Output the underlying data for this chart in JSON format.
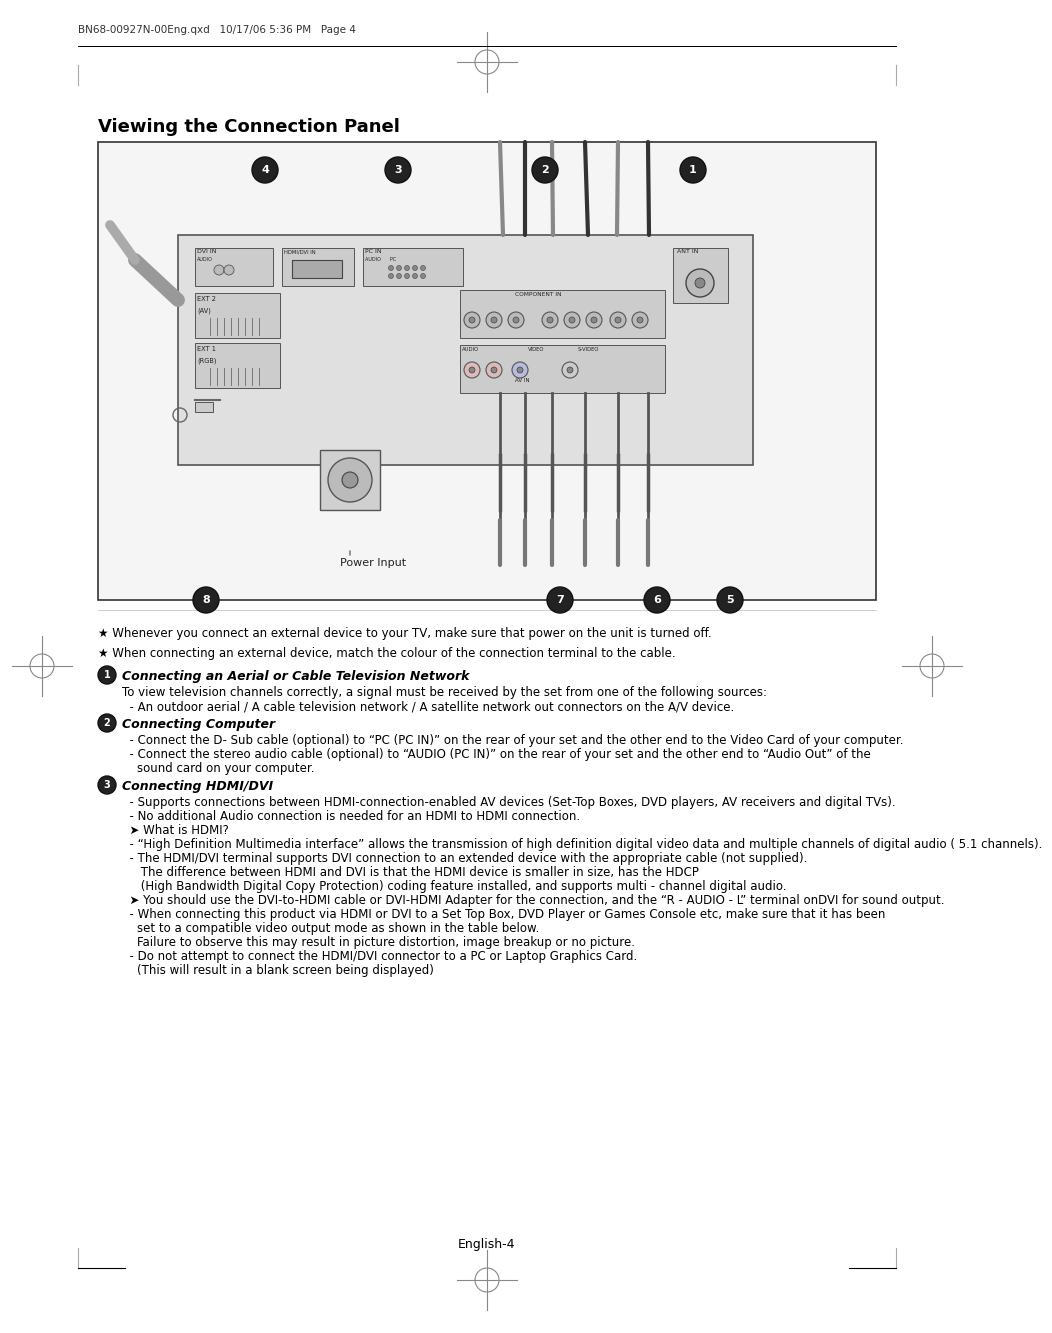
{
  "header_text": "BN68-00927N-00Eng.qxd   10/17/06 5:36 PM   Page 4",
  "title": "Viewing the Connection Panel",
  "footer_text": "English-4",
  "note1": "★ Whenever you connect an external device to your TV, make sure that power on the unit is turned off.",
  "note2": "★ When connecting an external device, match the colour of the connection terminal to the cable.",
  "section1_title": "Connecting an Aerial or Cable Television Network",
  "section1_body_line1": "To view television channels correctly, a signal must be received by the set from one of the following sources:",
  "section1_body_line2": "  - An outdoor aerial / A cable television network / A satellite network out connectors on the A/V device.",
  "section2_title": "Connecting Computer",
  "section2_body_line1": "  - Connect the D- Sub cable (optional) to “PC (PC IN)” on the rear of your set and the other end to the Video Card of your computer.",
  "section2_body_line2": "  - Connect the stereo audio cable (optional) to “AUDIO (PC IN)” on the rear of your set and the other end to “Audio Out” of the",
  "section2_body_line3": "    sound card on your computer.",
  "section3_title": "Connecting HDMI/DVI",
  "section3_lines": [
    "  - Supports connections between HDMI-connection-enabled AV devices (Set-Top Boxes, DVD players, AV receivers and digital TVs).",
    "  - No additional Audio connection is needed for an HDMI to HDMI connection.",
    "  ➤ What is HDMI?",
    "  - “High Definition Multimedia interface” allows the transmission of high definition digital video data and multiple channels of digital audio ( 5.1 channels).",
    "  - The HDMI/DVI terminal supports DVI connection to an extended device with the appropriate cable (not supplied).",
    "     The difference between HDMI and DVI is that the HDMI device is smaller in size, has the HDCP",
    "     (High Bandwidth Digital Copy Protection) coding feature installed, and supports multi - channel digital audio.",
    "  ➤ You should use the DVI-to-HDMI cable or DVI-HDMI Adapter for the connection, and the “R - AUDIO - L” terminal onDVI for sound output.",
    "  - When connecting this product via HDMI or DVI to a Set Top Box, DVD Player or Games Console etc, make sure that it has been",
    "    set to a compatible video output mode as shown in the table below.",
    "    Failure to observe this may result in picture distortion, image breakup or no picture.",
    "  - Do not attempt to connect the HDMI/DVI connector to a PC or Laptop Graphics Card.",
    "    (This will result in a blank screen being displayed)"
  ],
  "bg_color": "#ffffff",
  "text_color": "#000000",
  "page_width": 9.54,
  "page_height": 13.13
}
